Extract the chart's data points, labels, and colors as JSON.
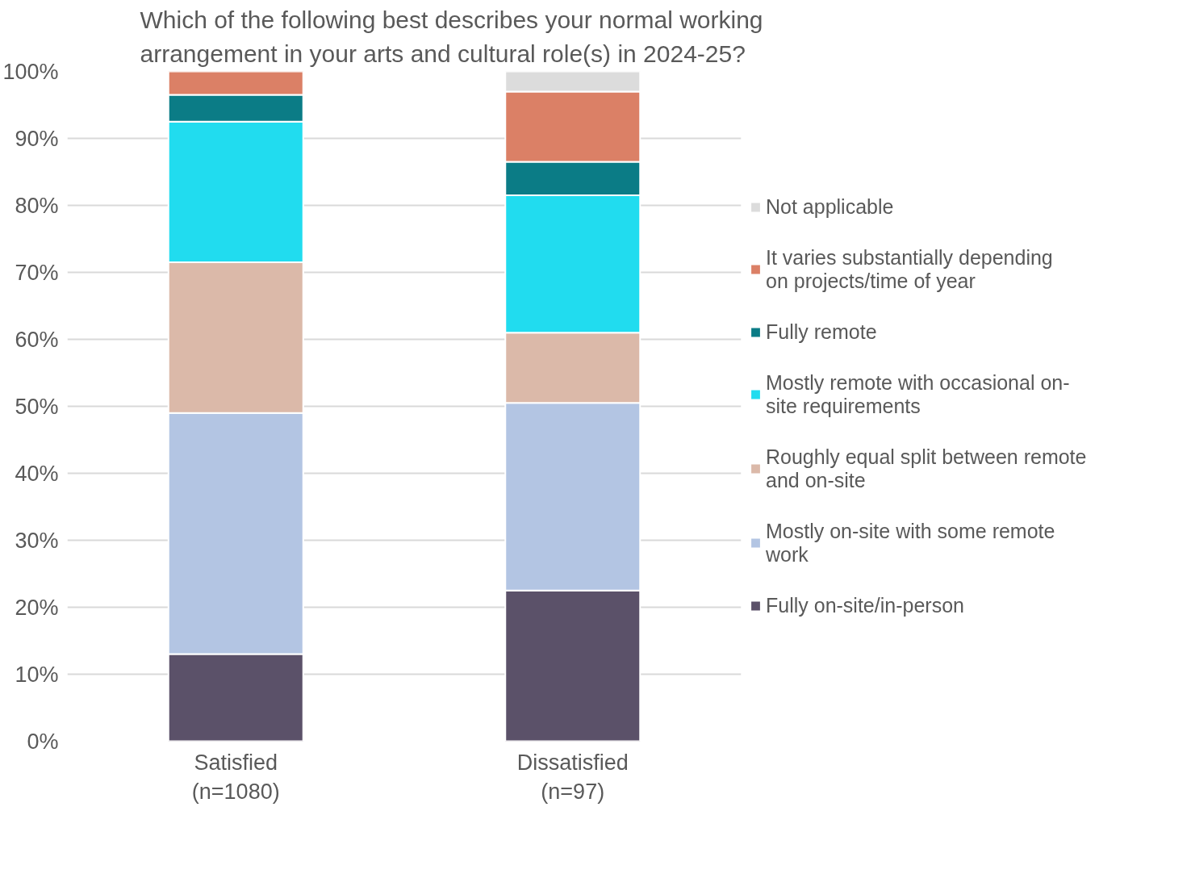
{
  "chart_data": {
    "type": "bar",
    "stacked": true,
    "title": "Which of the following best describes your normal working arrangement in your arts and cultural role(s) in 2024-25?",
    "categories": [
      "Satisfied (n=1080)",
      "Dissatisfied (n=97)"
    ],
    "series": [
      {
        "name": "Fully on-site/in-person",
        "color": "#5b5169",
        "values": [
          13,
          22.5
        ]
      },
      {
        "name": "Mostly on-site with some remote work",
        "color": "#b3c5e3",
        "values": [
          36,
          28
        ]
      },
      {
        "name": "Roughly equal split between remote and on-site",
        "color": "#dbb9a9",
        "values": [
          22.5,
          10.5
        ]
      },
      {
        "name": "Mostly remote with occasional on-site requirements",
        "color": "#21dcef",
        "values": [
          21,
          20.5
        ]
      },
      {
        "name": "Fully remote",
        "color": "#0b7c86",
        "values": [
          4,
          5
        ]
      },
      {
        "name": "It varies substantially depending on projects/time of year",
        "color": "#db8066",
        "values": [
          3.5,
          10.5
        ]
      },
      {
        "name": "Not applicable",
        "color": "#dcdcdc",
        "values": [
          null,
          3
        ]
      }
    ],
    "ylim": [
      0,
      100
    ],
    "yticks": [
      {
        "value": 0,
        "label": "0%"
      },
      {
        "value": 10,
        "label": "10%"
      },
      {
        "value": 20,
        "label": "20%"
      },
      {
        "value": 30,
        "label": "30%"
      },
      {
        "value": 40,
        "label": "40%"
      },
      {
        "value": 50,
        "label": "50%"
      },
      {
        "value": 60,
        "label": "60%"
      },
      {
        "value": 70,
        "label": "70%"
      },
      {
        "value": 80,
        "label": "80%"
      },
      {
        "value": 90,
        "label": "90%"
      },
      {
        "value": 100,
        "label": "100%"
      }
    ],
    "grid": "y",
    "legend": "right"
  }
}
